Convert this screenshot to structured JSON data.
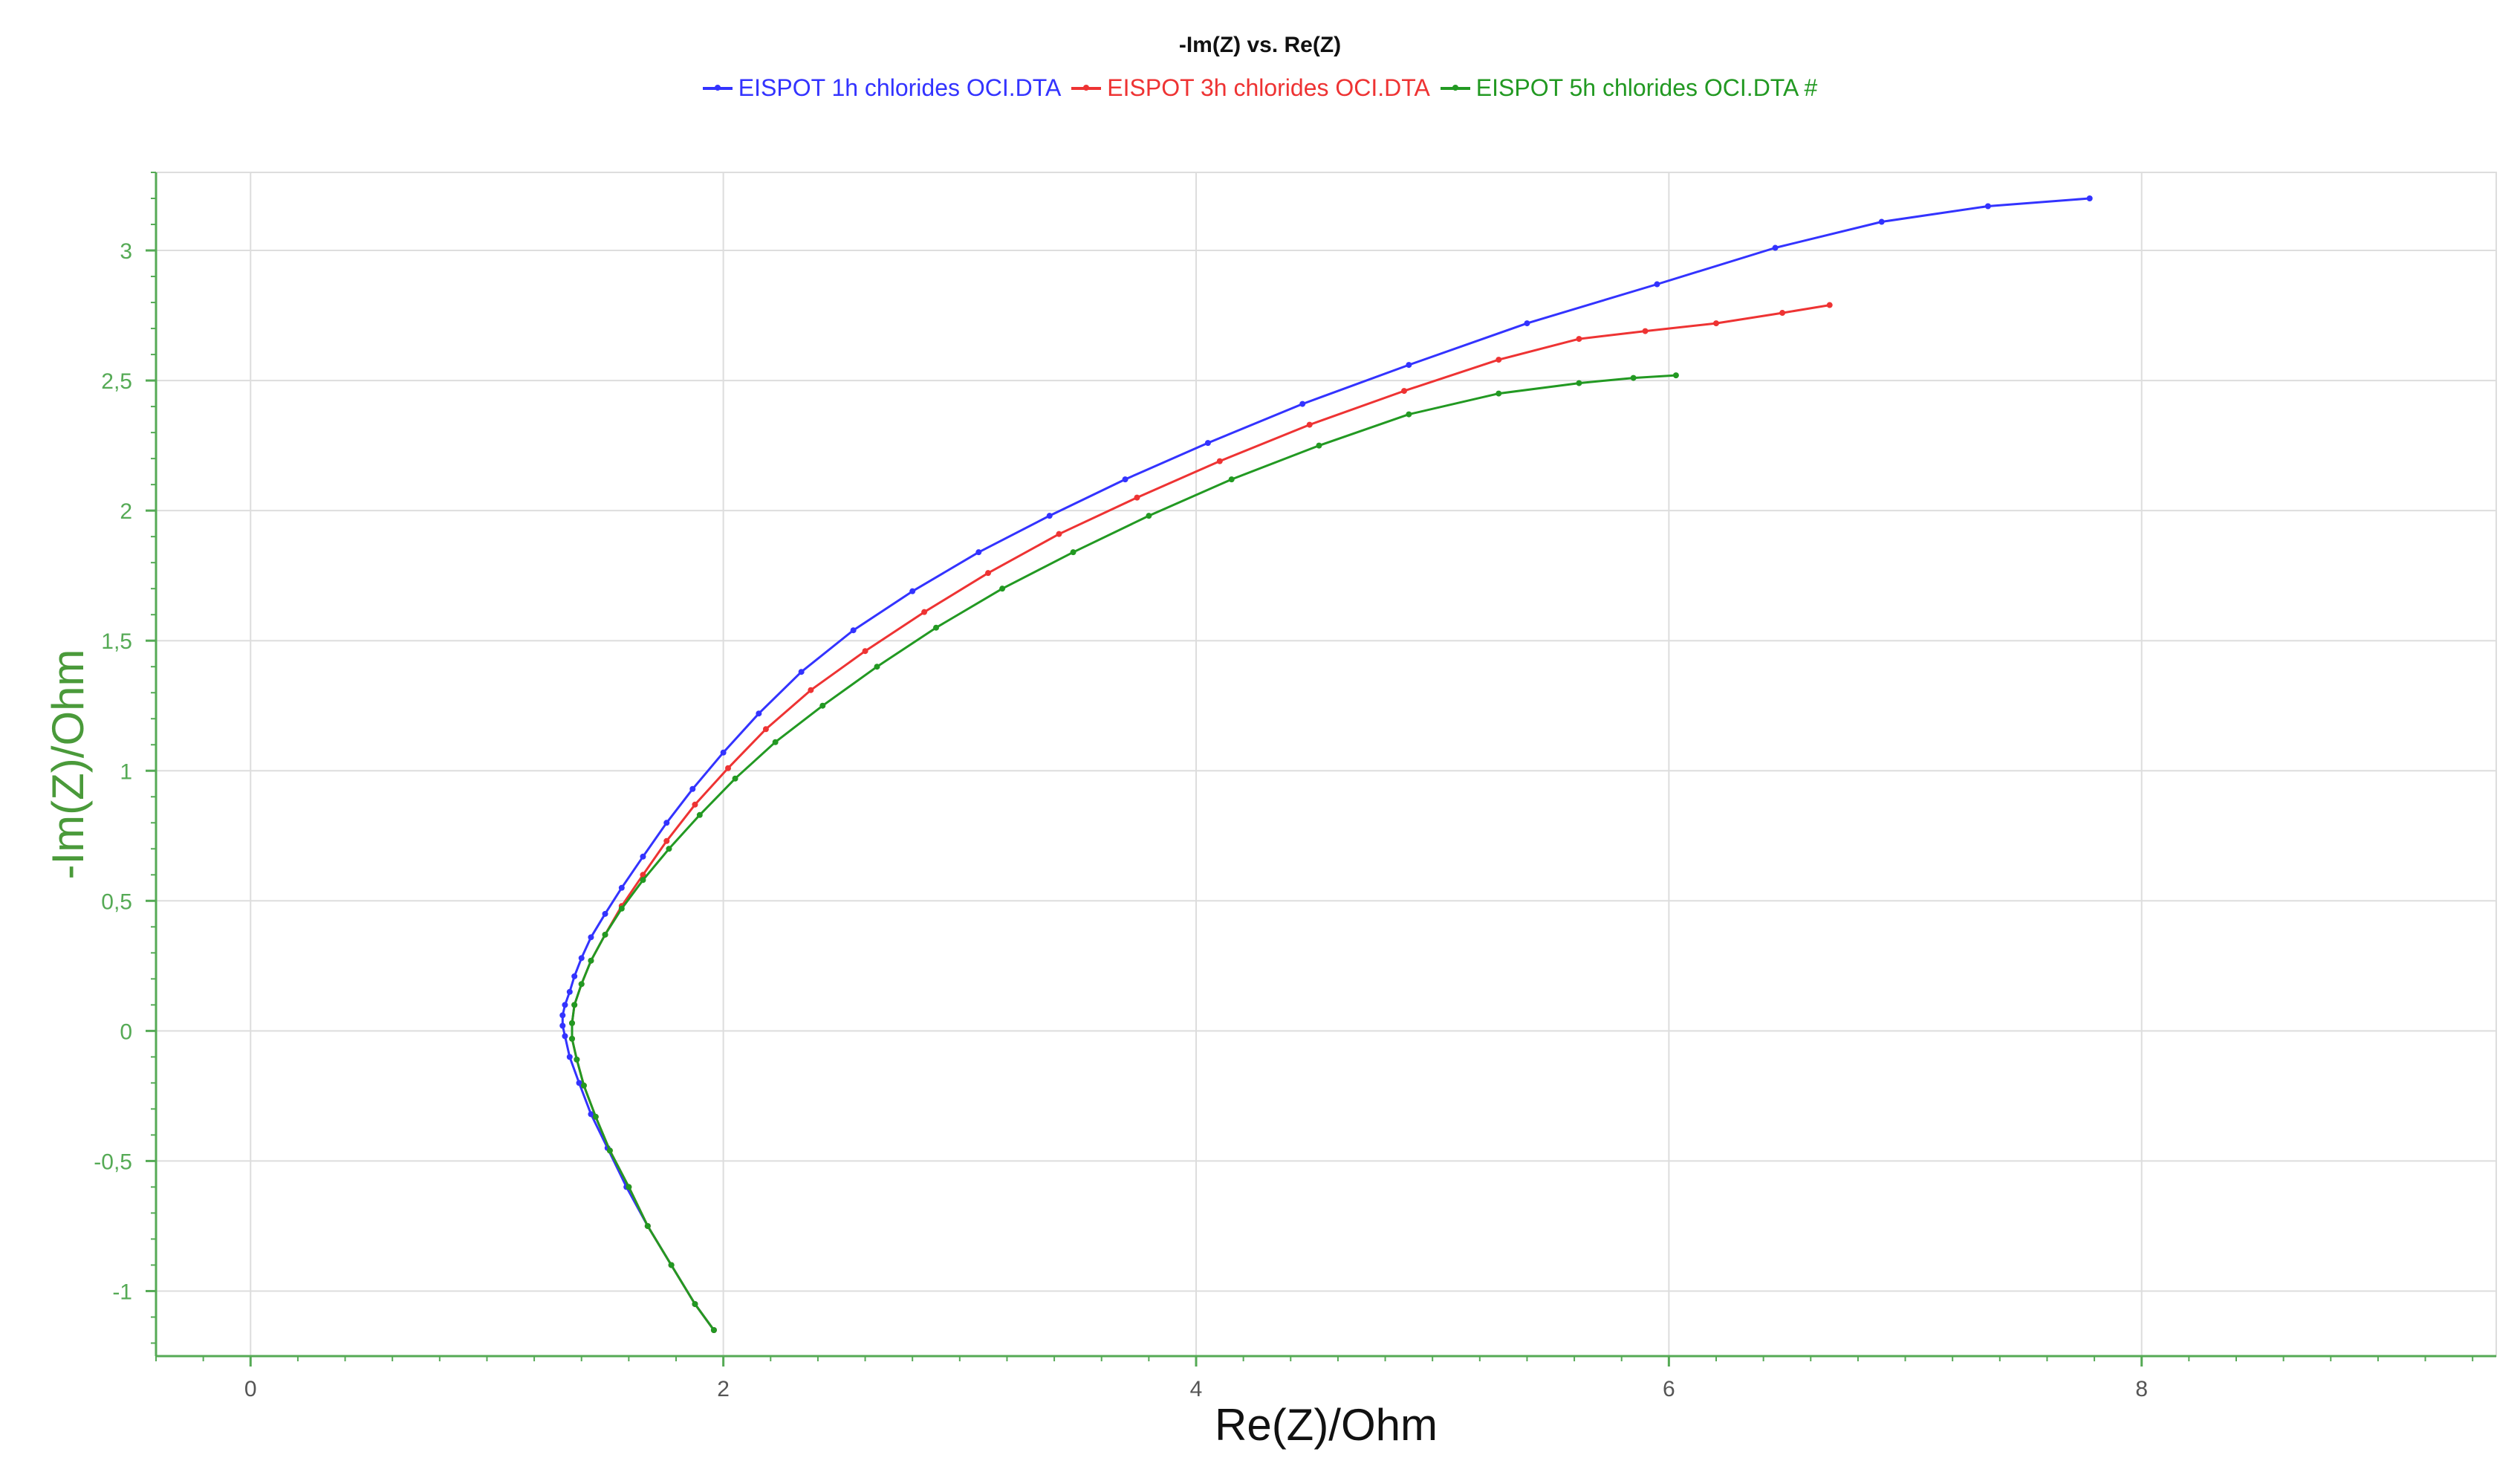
{
  "chart_data": {
    "type": "line",
    "title": "-Im(Z) vs. Re(Z)",
    "xlabel": "Re(Z)/Ohm",
    "ylabel": "-Im(Z)/Ohm",
    "xlim": [
      -0.4,
      9.5
    ],
    "ylim": [
      -1.25,
      3.3
    ],
    "xticks": [
      "0",
      "2",
      "4",
      "6",
      "8"
    ],
    "yticks": [
      "-1",
      "-0,5",
      "0",
      "0,5",
      "1",
      "1,5",
      "2",
      "2,5",
      "3"
    ],
    "grid": true,
    "legend_position": "top-center",
    "series": [
      {
        "name": "EISPOT 1h chlorides OCI.DTA",
        "color": "#3333ff",
        "x": [
          1.96,
          1.88,
          1.78,
          1.68,
          1.59,
          1.51,
          1.44,
          1.39,
          1.35,
          1.33,
          1.32,
          1.32,
          1.33,
          1.35,
          1.37,
          1.4,
          1.44,
          1.5,
          1.57,
          1.66,
          1.76,
          1.87,
          2.0,
          2.15,
          2.33,
          2.55,
          2.8,
          3.08,
          3.38,
          3.7,
          4.05,
          4.45,
          4.9,
          5.4,
          5.95,
          6.45,
          6.9,
          7.35,
          7.78
        ],
        "y": [
          -1.15,
          -1.05,
          -0.9,
          -0.75,
          -0.6,
          -0.45,
          -0.32,
          -0.2,
          -0.1,
          -0.02,
          0.02,
          0.06,
          0.1,
          0.15,
          0.21,
          0.28,
          0.36,
          0.45,
          0.55,
          0.67,
          0.8,
          0.93,
          1.07,
          1.22,
          1.38,
          1.54,
          1.69,
          1.84,
          1.98,
          2.12,
          2.26,
          2.41,
          2.56,
          2.72,
          2.87,
          3.01,
          3.11,
          3.17,
          3.2
        ]
      },
      {
        "name": "EISPOT 3h chlorides OCI.DTA",
        "color": "#ee3333",
        "x": [
          1.96,
          1.88,
          1.78,
          1.68,
          1.6,
          1.52,
          1.46,
          1.41,
          1.38,
          1.36,
          1.36,
          1.37,
          1.4,
          1.44,
          1.5,
          1.57,
          1.66,
          1.76,
          1.88,
          2.02,
          2.18,
          2.37,
          2.6,
          2.85,
          3.12,
          3.42,
          3.75,
          4.1,
          4.48,
          4.88,
          5.28,
          5.62,
          5.9,
          6.2,
          6.48,
          6.68
        ],
        "y": [
          -1.15,
          -1.05,
          -0.9,
          -0.75,
          -0.6,
          -0.46,
          -0.33,
          -0.21,
          -0.11,
          -0.03,
          0.03,
          0.1,
          0.18,
          0.27,
          0.37,
          0.48,
          0.6,
          0.73,
          0.87,
          1.01,
          1.16,
          1.31,
          1.46,
          1.61,
          1.76,
          1.91,
          2.05,
          2.19,
          2.33,
          2.46,
          2.58,
          2.66,
          2.69,
          2.72,
          2.76,
          2.79
        ]
      },
      {
        "name": "EISPOT 5h chlorides OCI.DTA #",
        "color": "#229922",
        "x": [
          1.96,
          1.88,
          1.78,
          1.68,
          1.6,
          1.52,
          1.46,
          1.41,
          1.38,
          1.36,
          1.36,
          1.37,
          1.4,
          1.44,
          1.5,
          1.57,
          1.66,
          1.77,
          1.9,
          2.05,
          2.22,
          2.42,
          2.65,
          2.9,
          3.18,
          3.48,
          3.8,
          4.15,
          4.52,
          4.9,
          5.28,
          5.62,
          5.85,
          6.03
        ],
        "y": [
          -1.15,
          -1.05,
          -0.9,
          -0.75,
          -0.6,
          -0.46,
          -0.33,
          -0.21,
          -0.11,
          -0.03,
          0.03,
          0.1,
          0.18,
          0.27,
          0.37,
          0.47,
          0.58,
          0.7,
          0.83,
          0.97,
          1.11,
          1.25,
          1.4,
          1.55,
          1.7,
          1.84,
          1.98,
          2.12,
          2.25,
          2.37,
          2.45,
          2.49,
          2.51,
          2.52
        ]
      }
    ]
  },
  "colors": {
    "axis": "#55aa55",
    "grid": "#dddddd",
    "ylabel": "#4a9a3a"
  }
}
